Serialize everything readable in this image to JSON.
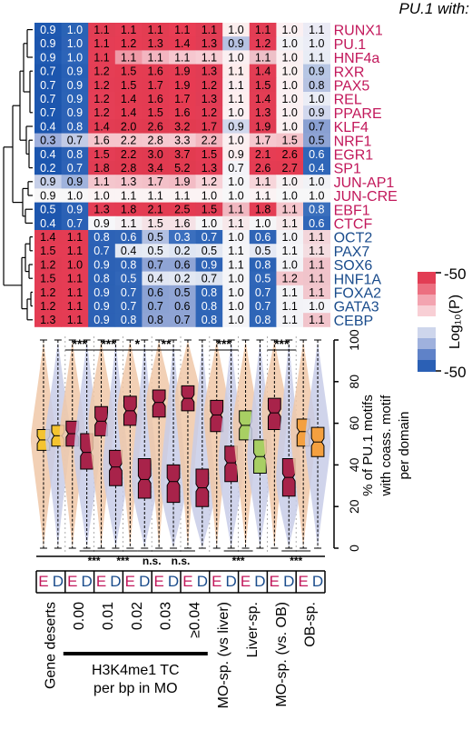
{
  "chart_data": [
    {
      "type": "heatmap",
      "title": "PU.1 with:",
      "rows": [
        "RUNX1",
        "PU.1",
        "HNF4a",
        "RXR",
        "PAX5",
        "REL",
        "PPARE",
        "KLF4",
        "NRF1",
        "EGR1",
        "SP1",
        "JUN-AP1",
        "JUN-CRE",
        "EBF1",
        "CTCF",
        "OCT2",
        "PAX7",
        "SOX6",
        "HNF1A",
        "FOXA2",
        "GATA3",
        "CEBP"
      ],
      "row_label_colors": [
        "#c2185b",
        "#c2185b",
        "#c2185b",
        "#c2185b",
        "#c2185b",
        "#c2185b",
        "#c2185b",
        "#c2185b",
        "#c2185b",
        "#c2185b",
        "#c2185b",
        "#c2185b",
        "#c2185b",
        "#c2185b",
        "#c2185b",
        "#1a4c8c",
        "#1a4c8c",
        "#1a4c8c",
        "#1a4c8c",
        "#1a4c8c",
        "#1a4c8c",
        "#1a4c8c"
      ],
      "values": [
        [
          "0.9",
          "1.0",
          "1.1",
          "1.1",
          "1.1",
          "1.1",
          "1.1",
          "1.0",
          "1.1",
          "1.0",
          "1.1"
        ],
        [
          "0.9",
          "1.0",
          "1.1",
          "1.2",
          "1.3",
          "1.4",
          "1.3",
          "0.9",
          "1.2",
          "1.0",
          "1.0"
        ],
        [
          "0.9",
          "1.0",
          "1.1",
          "1.1",
          "1.1",
          "1.1",
          "1.1",
          "1.0",
          "1.1",
          "1.0",
          "1.1"
        ],
        [
          "0.7",
          "0.9",
          "1.2",
          "1.5",
          "1.6",
          "1.9",
          "1.3",
          "1.1",
          "1.4",
          "1.0",
          "0.9"
        ],
        [
          "0.7",
          "0.9",
          "1.2",
          "1.5",
          "1.7",
          "1.9",
          "1.2",
          "1.1",
          "1.5",
          "1.0",
          "0.8"
        ],
        [
          "0.7",
          "0.9",
          "1.2",
          "1.4",
          "1.6",
          "1.7",
          "1.3",
          "1.1",
          "1.4",
          "1.0",
          "1.0"
        ],
        [
          "0.7",
          "0.9",
          "1.2",
          "1.4",
          "1.5",
          "1.6",
          "1.2",
          "1.0",
          "1.3",
          "1.0",
          "0.9"
        ],
        [
          "0.4",
          "0.8",
          "1.4",
          "2.0",
          "2.6",
          "3.2",
          "1.7",
          "0.9",
          "1.9",
          "1.0",
          "0.7"
        ],
        [
          "0.3",
          "0.7",
          "1.6",
          "2.2",
          "2.8",
          "3.3",
          "2.2",
          "1.0",
          "1.7",
          "1.5",
          "0.5"
        ],
        [
          "0.4",
          "0.8",
          "1.5",
          "2.2",
          "3.0",
          "3.7",
          "1.5",
          "0.9",
          "2.1",
          "2.6",
          "0.6"
        ],
        [
          "0.2",
          "0.7",
          "1.8",
          "2.8",
          "3.4",
          "5.2",
          "1.3",
          "0.7",
          "2.6",
          "2.7",
          "0.4"
        ],
        [
          "0.9",
          "0.9",
          "1.1",
          "1.3",
          "1.7",
          "1.9",
          "1.2",
          "1.0",
          "1.1",
          "1.0",
          "1.0"
        ],
        [
          "0.9",
          "1.0",
          "1.0",
          "1.1",
          "1.1",
          "1.1",
          "1.0",
          "1.0",
          "1.1",
          "1.0",
          "1.0"
        ],
        [
          "0.5",
          "0.9",
          "1.3",
          "1.8",
          "2.1",
          "2.5",
          "1.5",
          "1.1",
          "1.8",
          "1.1",
          "0.8"
        ],
        [
          "0.4",
          "0.7",
          "0.9",
          "1.1",
          "1.5",
          "1.6",
          "1.0",
          "1.1",
          "1.0",
          "1.1",
          "0.6"
        ],
        [
          "1.4",
          "1.1",
          "0.8",
          "0.6",
          "0.5",
          "0.3",
          "0.7",
          "1.0",
          "0.6",
          "1.0",
          "1.1"
        ],
        [
          "1.5",
          "1.1",
          "0.7",
          "0.4",
          "0.5",
          "0.2",
          "0.5",
          "1.1",
          "0.5",
          "1.1",
          "1.1"
        ],
        [
          "1.2",
          "1.0",
          "0.9",
          "0.8",
          "0.7",
          "0.6",
          "0.9",
          "1.1",
          "0.8",
          "1.0",
          "1.1"
        ],
        [
          "1.5",
          "1.1",
          "0.8",
          "0.5",
          "0.4",
          "0.2",
          "0.7",
          "1.0",
          "0.5",
          "1.2",
          "1.1"
        ],
        [
          "1.2",
          "1.1",
          "0.9",
          "0.7",
          "0.6",
          "0.5",
          "0.8",
          "1.0",
          "0.7",
          "1.1",
          "1.1"
        ],
        [
          "1.2",
          "1.1",
          "0.9",
          "0.7",
          "0.7",
          "0.6",
          "0.8",
          "1.0",
          "0.7",
          "1.1",
          "1.0"
        ],
        [
          "1.3",
          "1.1",
          "0.9",
          "0.8",
          "0.8",
          "0.7",
          "0.8",
          "1.0",
          "0.8",
          "1.1",
          "1.1"
        ]
      ],
      "colors": [
        [
          "#1e58b0",
          "#2a63b5",
          "#e23e54",
          "#e63e55",
          "#e33d52",
          "#e93d54",
          "#e13d54",
          "#fbeeee",
          "#e23d54",
          "#fbf0f2",
          "#ebebf5"
        ],
        [
          "#1d56ae",
          "#2d62b6",
          "#e53d55",
          "#e73d54",
          "#e43d53",
          "#e83c53",
          "#e13d55",
          "#b6c2e2",
          "#e43d56",
          "#f2f2f6",
          "#ebedf6"
        ],
        [
          "#1f5ab2",
          "#2c64b8",
          "#e53f56",
          "#ef9aa7",
          "#f3b5c0",
          "#f6c7cf",
          "#f7cdd4",
          "#fbf0f2",
          "#eec0c8",
          "#fbf0f2",
          "#e8ecf5"
        ],
        [
          "#1c56ae",
          "#2860b5",
          "#e53e55",
          "#e53c52",
          "#e43c52",
          "#e63c53",
          "#e13c54",
          "#fdecec",
          "#e33d54",
          "#fbf1f1",
          "#b7c6e4"
        ],
        [
          "#1d56ae",
          "#2a62b6",
          "#e43d55",
          "#e43c53",
          "#e43b52",
          "#e73b53",
          "#e23c54",
          "#fbedf0",
          "#e13c53",
          "#fbf0f2",
          "#b7c3e2"
        ],
        [
          "#1d56ae",
          "#2b63b6",
          "#e53e56",
          "#e43c52",
          "#e43b52",
          "#e63c52",
          "#e13c55",
          "#fdeeef",
          "#e33d54",
          "#fbf0f2",
          "#ebedf6"
        ],
        [
          "#1c56ae",
          "#2c62b6",
          "#e53e56",
          "#e53c53",
          "#e43b52",
          "#e63c53",
          "#e33d55",
          "#fcf0f2",
          "#e33d54",
          "#fbf0f2",
          "#d2d8ee"
        ],
        [
          "#1b55ae",
          "#2d62b6",
          "#e23c53",
          "#e13b51",
          "#e13a50",
          "#e23b50",
          "#e23c53",
          "#d0d7ec",
          "#e03c53",
          "#fbf0f2",
          "#8aa0d2"
        ],
        [
          "#9fb0dd",
          "#c2cbe6",
          "#f6c6cd",
          "#f6c6cd",
          "#f6c8cf",
          "#f6cad1",
          "#f3b7c0",
          "#fbeff1",
          "#f6c8cf",
          "#f4c3ca",
          "#8ea3d4"
        ],
        [
          "#1c56ae",
          "#2b61b5",
          "#e43d55",
          "#e23b51",
          "#e13a51",
          "#e33b50",
          "#e53c54",
          "#fbeef0",
          "#e63d54",
          "#e83c52",
          "#2f66b8"
        ],
        [
          "#1c56ae",
          "#2d62b6",
          "#e13c53",
          "#e13b51",
          "#e13a50",
          "#e13b50",
          "#e33c54",
          "#f3f3f8",
          "#e43c53",
          "#e33c52",
          "#2f66b8"
        ],
        [
          "#c6cfe8",
          "#9fb3dd",
          "#f4c6cd",
          "#f4c3cb",
          "#f3c0c8",
          "#f3bcc5",
          "#f7d1d7",
          "#f5f5f8",
          "#f7d5da",
          "#f7f0f2",
          "#f1f2f6"
        ],
        [
          "#f7f7f8",
          "#f7f7f8",
          "#fbf3f4",
          "#fbf3f4",
          "#fbf3f4",
          "#fbf3f4",
          "#fbf3f4",
          "#f7f7f8",
          "#fbf3f4",
          "#f7f7f8",
          "#f7f7f8"
        ],
        [
          "#1d56ae",
          "#2b61b5",
          "#e43d55",
          "#e43c53",
          "#e33c52",
          "#e43c52",
          "#e03d54",
          "#f0b7c0",
          "#e43d54",
          "#f4c5cc",
          "#3a6fbc"
        ],
        [
          "#1d56ae",
          "#2a61b5",
          "#f6f7fa",
          "#f5f0f3",
          "#f5e2e6",
          "#f5e2e6",
          "#f5f5f7",
          "#f7e8ea",
          "#f5f5f7",
          "#f7e9eb",
          "#2f66b8"
        ],
        [
          "#e33c53",
          "#e43c53",
          "#2d62b6",
          "#2f64b6",
          "#b1c0e2",
          "#3b6fbe",
          "#2f66b8",
          "#f4f4f8",
          "#2f64b6",
          "#f3f3f7",
          "#f3d5da"
        ],
        [
          "#e53c54",
          "#e53c54",
          "#2c61b5",
          "#e3e8f3",
          "#e6ebf4",
          "#dfe6f3",
          "#e3e8f3",
          "#f5f5f8",
          "#e5e9f4",
          "#f5f5f8",
          "#f4dde1"
        ],
        [
          "#e13c53",
          "#e53c54",
          "#2c61b5",
          "#2e63b6",
          "#8fa4d5",
          "#8fa4d5",
          "#2e63b6",
          "#f5f5f8",
          "#2b62b5",
          "#f3f3f7",
          "#f1c4cb"
        ],
        [
          "#e33c54",
          "#e53c54",
          "#2b61b5",
          "#3166b8",
          "#e1e6f3",
          "#e3e8f3",
          "#dde4f1",
          "#f5f5f8",
          "#3066b8",
          "#f3c5cc",
          "#f0c4cb"
        ],
        [
          "#e43c53",
          "#e53c54",
          "#2c61b5",
          "#2f64b6",
          "#8ba2d4",
          "#90a5d5",
          "#2f65b7",
          "#f5f5f8",
          "#2e65b7",
          "#f3f3f7",
          "#f2c7ce"
        ],
        [
          "#e43c53",
          "#e53c54",
          "#2c61b5",
          "#2f64b6",
          "#8ca3d4",
          "#8fa4d5",
          "#2f65b7",
          "#f5f5f8",
          "#2e65b7",
          "#f3f3f7",
          "#f4f4f8"
        ],
        [
          "#e43c53",
          "#e43c54",
          "#2c61b5",
          "#2f64b6",
          "#8fa4d5",
          "#8fa4d5",
          "#2f65b7",
          "#f5f5f8",
          "#2e65b7",
          "#f3f3f7",
          "#f1c4cb"
        ]
      ],
      "colorbar": {
        "top_label": "-50",
        "bottom_label": "-50",
        "label": "Log₁₀(P)"
      }
    },
    {
      "type": "box",
      "ylabel": [
        "% of PU.1 motifs",
        "with coass. motif",
        "per domain"
      ],
      "yticks": [
        "0",
        "20",
        "40",
        "60",
        "80",
        "100"
      ],
      "ylim": [
        0,
        100
      ],
      "pair_labels": [
        "E",
        "D"
      ],
      "pair_label_colors": [
        "#c2185b",
        "#1a4c8c"
      ],
      "groups": [
        "Gene deserts",
        "0.00",
        "0.01",
        "0.02",
        "0.03",
        "≥0.04",
        "MO-sp. (vs liver)",
        "Liver-sp.",
        "MO-sp. (vs. OB)",
        "OB-sp."
      ],
      "group_bar_label": [
        "H3K4me1 TC",
        "per bp in MO"
      ],
      "boxes": [
        {
          "q1": 47,
          "median": 52,
          "q3": 57,
          "min": 0,
          "max": 100,
          "fill": "#f4c430",
          "violin": "#f0c8a8"
        },
        {
          "q1": 49,
          "median": 54,
          "q3": 59,
          "min": 0,
          "max": 100,
          "fill": "#f4c430",
          "violin": "#c8cce8"
        },
        {
          "q1": 49,
          "median": 55,
          "q3": 61,
          "min": 0,
          "max": 100,
          "fill": "#a8234a",
          "violin": "#f0c8a8"
        },
        {
          "q1": 38,
          "median": 46,
          "q3": 55,
          "min": 0,
          "max": 100,
          "fill": "#a8234a",
          "violin": "#c8cce8"
        },
        {
          "q1": 54,
          "median": 61,
          "q3": 68,
          "min": 0,
          "max": 100,
          "fill": "#a8234a",
          "violin": "#f0c8a8"
        },
        {
          "q1": 30,
          "median": 39,
          "q3": 47,
          "min": 0,
          "max": 100,
          "fill": "#a8234a",
          "violin": "#c8cce8"
        },
        {
          "q1": 59,
          "median": 66,
          "q3": 73,
          "min": 0,
          "max": 100,
          "fill": "#a8234a",
          "violin": "#f0c8a8"
        },
        {
          "q1": 24,
          "median": 33,
          "q3": 43,
          "min": 0,
          "max": 100,
          "fill": "#a8234a",
          "violin": "#c8cce8"
        },
        {
          "q1": 63,
          "median": 70,
          "q3": 76,
          "min": 0,
          "max": 100,
          "fill": "#a8234a",
          "violin": "#f0c8a8"
        },
        {
          "q1": 22,
          "median": 32,
          "q3": 40,
          "min": 0,
          "max": 100,
          "fill": "#a8234a",
          "violin": "#c8cce8"
        },
        {
          "q1": 66,
          "median": 72,
          "q3": 78,
          "min": 0,
          "max": 100,
          "fill": "#a8234a",
          "violin": "#f0c8a8"
        },
        {
          "q1": 20,
          "median": 29,
          "q3": 38,
          "min": 0,
          "max": 100,
          "fill": "#a8234a",
          "violin": "#c8cce8"
        },
        {
          "q1": 56,
          "median": 64,
          "q3": 71,
          "min": 0,
          "max": 100,
          "fill": "#a8234a",
          "violin": "#f0c8a8"
        },
        {
          "q1": 32,
          "median": 41,
          "q3": 49,
          "min": 0,
          "max": 100,
          "fill": "#a8234a",
          "violin": "#c8cce8"
        },
        {
          "q1": 52,
          "median": 59,
          "q3": 66,
          "min": 0,
          "max": 100,
          "fill": "#a8cf63",
          "violin": "#f0c8a8"
        },
        {
          "q1": 36,
          "median": 44,
          "q3": 52,
          "min": 0,
          "max": 100,
          "fill": "#a8cf63",
          "violin": "#c8cce8"
        },
        {
          "q1": 57,
          "median": 65,
          "q3": 72,
          "min": 0,
          "max": 100,
          "fill": "#a8234a",
          "violin": "#f0c8a8"
        },
        {
          "q1": 25,
          "median": 34,
          "q3": 43,
          "min": 0,
          "max": 100,
          "fill": "#a8234a",
          "violin": "#c8cce8"
        },
        {
          "q1": 49,
          "median": 56,
          "q3": 62,
          "min": 0,
          "max": 100,
          "fill": "#f4a040",
          "violin": "#f0c8a8"
        },
        {
          "q1": 44,
          "median": 51,
          "q3": 58,
          "min": 0,
          "max": 100,
          "fill": "#f4a040",
          "violin": "#c8cce8"
        }
      ],
      "significance_top": [
        "***",
        "***",
        "*",
        "**",
        "***",
        "***"
      ],
      "significance_bottom": [
        "***",
        "***",
        "n.s.",
        "n.s.",
        "***",
        "***"
      ]
    }
  ]
}
